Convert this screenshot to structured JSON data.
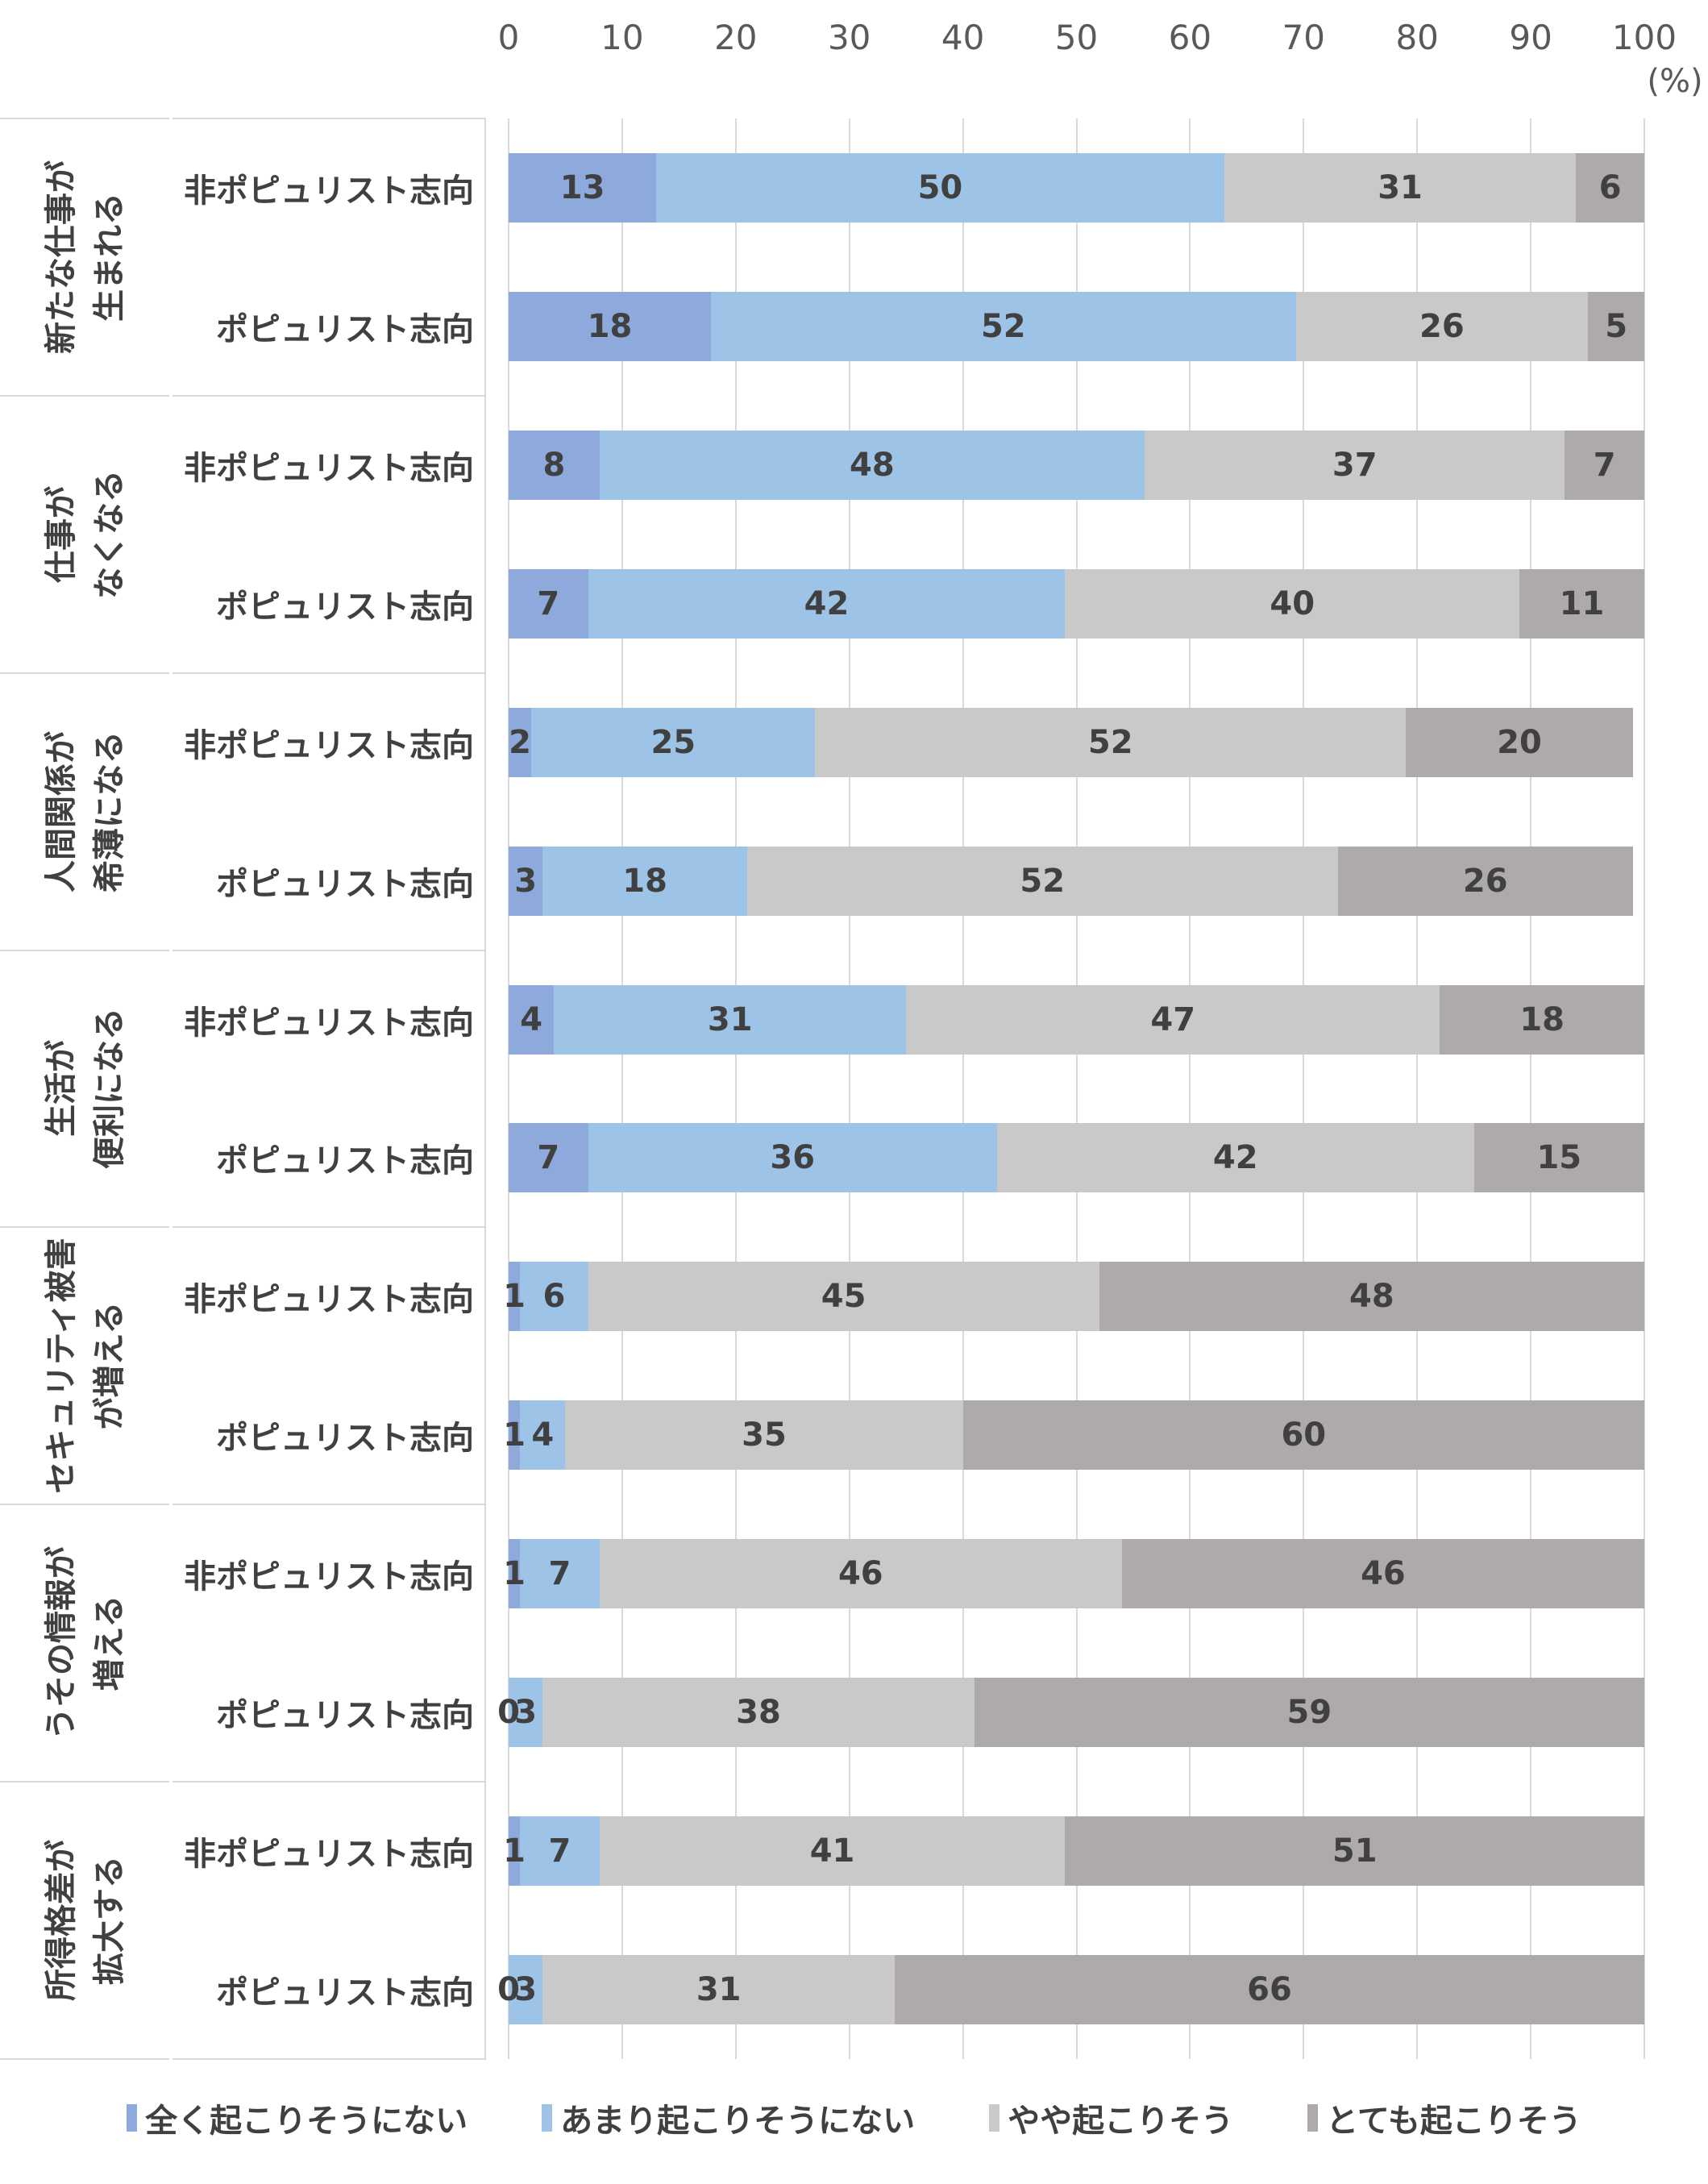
{
  "axis": {
    "ticks": [
      0,
      10,
      20,
      30,
      40,
      50,
      60,
      70,
      80,
      90,
      100
    ],
    "unit_label": "(%)"
  },
  "colors": {
    "series1": "#8EA9DB",
    "series2": "#9DC3E6",
    "series3": "#C9C9C9",
    "series4": "#AEAAAA",
    "gridline": "#D9D9D9",
    "tick_text": "#595959",
    "label_text": "#404040"
  },
  "legend": {
    "items": [
      {
        "label": "全く起こりそうにない",
        "color": "#8EA9DB"
      },
      {
        "label": "あまり起こりそうにない",
        "color": "#9DC3E6"
      },
      {
        "label": "やや起こりそう",
        "color": "#C9C9C9"
      },
      {
        "label": "とても起こりそう",
        "color": "#AEAAAA"
      }
    ]
  },
  "chart_data": {
    "type": "bar",
    "stacked": true,
    "percent_stacked": true,
    "orientation": "horizontal",
    "title": "",
    "xlabel": "(%)",
    "ylabel": "",
    "xlim": [
      0,
      100
    ],
    "xticks": [
      0,
      10,
      20,
      30,
      40,
      50,
      60,
      70,
      80,
      90,
      100
    ],
    "grid": true,
    "legend_position": "bottom",
    "series_names": [
      "全く起こりそうにない",
      "あまり起こりそうにない",
      "やや起こりそう",
      "とても起こりそう"
    ],
    "series_colors": [
      "#8EA9DB",
      "#9DC3E6",
      "#C9C9C9",
      "#AEAAAA"
    ],
    "groups": [
      {
        "category_lines": [
          "新たな仕事が",
          "生まれる"
        ],
        "rows": [
          {
            "label": "非ポピュリスト志向",
            "values": [
              13,
              50,
              31,
              6
            ]
          },
          {
            "label": "ポピュリスト志向",
            "values": [
              18,
              52,
              26,
              5
            ]
          }
        ]
      },
      {
        "category_lines": [
          "仕事が",
          "なくなる"
        ],
        "rows": [
          {
            "label": "非ポピュリスト志向",
            "values": [
              8,
              48,
              37,
              7
            ]
          },
          {
            "label": "ポピュリスト志向",
            "values": [
              7,
              42,
              40,
              11
            ]
          }
        ]
      },
      {
        "category_lines": [
          "人間関係が",
          "希薄になる"
        ],
        "rows": [
          {
            "label": "非ポピュリスト志向",
            "values": [
              2,
              25,
              52,
              20
            ]
          },
          {
            "label": "ポピュリスト志向",
            "values": [
              3,
              18,
              52,
              26
            ]
          }
        ]
      },
      {
        "category_lines": [
          "生活が",
          "便利になる"
        ],
        "rows": [
          {
            "label": "非ポピュリスト志向",
            "values": [
              4,
              31,
              47,
              18
            ]
          },
          {
            "label": "ポピュリスト志向",
            "values": [
              7,
              36,
              42,
              15
            ]
          }
        ]
      },
      {
        "category_lines": [
          "セキュリティ被害",
          "が増える"
        ],
        "rows": [
          {
            "label": "非ポピュリスト志向",
            "values": [
              1,
              6,
              45,
              48
            ]
          },
          {
            "label": "ポピュリスト志向",
            "values": [
              1,
              4,
              35,
              60
            ]
          }
        ]
      },
      {
        "category_lines": [
          "うその情報が",
          "増える"
        ],
        "rows": [
          {
            "label": "非ポピュリスト志向",
            "values": [
              1,
              7,
              46,
              46
            ]
          },
          {
            "label": "ポピュリスト志向",
            "values": [
              0,
              3,
              38,
              59
            ]
          }
        ]
      },
      {
        "category_lines": [
          "所得格差が",
          "拡大する"
        ],
        "rows": [
          {
            "label": "非ポピュリスト志向",
            "values": [
              1,
              7,
              41,
              51
            ]
          },
          {
            "label": "ポピュリスト志向",
            "values": [
              0,
              3,
              31,
              66
            ]
          }
        ]
      }
    ]
  }
}
